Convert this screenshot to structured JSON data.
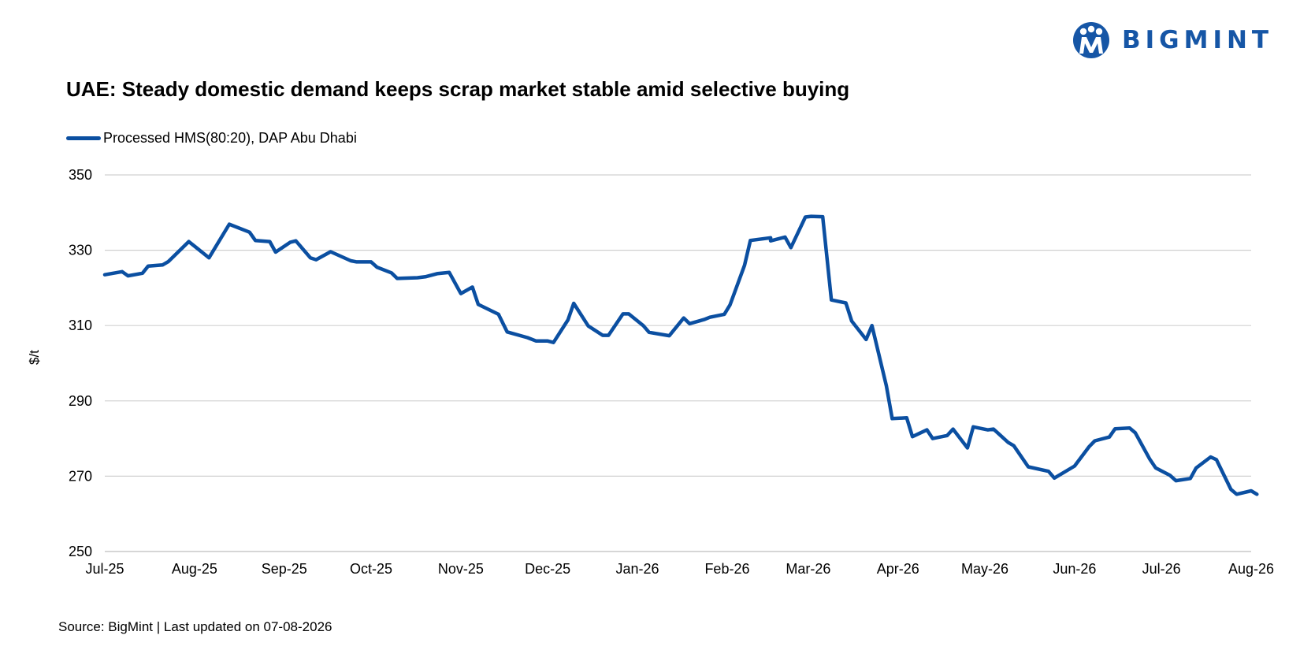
{
  "brand": {
    "name": "BIGMINT",
    "logo_icon": "bigmint-logo-icon",
    "color": "#1656a6"
  },
  "chart_data": {
    "type": "line",
    "title": "UAE: Steady domestic demand keeps scrap market stable amid selective buying",
    "ylabel": "$/t",
    "xlabel": "",
    "ylim": [
      250,
      350
    ],
    "yticks": [
      250,
      270,
      290,
      310,
      330,
      350
    ],
    "xticks": [
      "Jul-25",
      "Aug-25",
      "Sep-25",
      "Oct-25",
      "Nov-25",
      "Dec-25",
      "Jan-26",
      "Feb-26",
      "Mar-26",
      "Apr-26",
      "May-26",
      "Jun-26",
      "Jul-26",
      "Aug-26"
    ],
    "xlim": [
      "2025-07-01",
      "2026-08-01"
    ],
    "grid": true,
    "legend_position": "top-left",
    "series": [
      {
        "name": "Processed HMS(80:20), DAP Abu Dhabi",
        "color": "#0b4fa1",
        "points": [
          [
            "2025-07-01",
            323.5
          ],
          [
            "2025-07-07",
            324.3
          ],
          [
            "2025-07-09",
            323.2
          ],
          [
            "2025-07-14",
            323.9
          ],
          [
            "2025-07-16",
            325.8
          ],
          [
            "2025-07-21",
            326.1
          ],
          [
            "2025-07-23",
            327.0
          ],
          [
            "2025-07-30",
            332.3
          ],
          [
            "2025-08-06",
            328.0
          ],
          [
            "2025-08-13",
            336.9
          ],
          [
            "2025-08-20",
            334.8
          ],
          [
            "2025-08-22",
            332.6
          ],
          [
            "2025-08-27",
            332.3
          ],
          [
            "2025-08-29",
            329.5
          ],
          [
            "2025-09-03",
            332.1
          ],
          [
            "2025-09-05",
            332.5
          ],
          [
            "2025-09-10",
            328.0
          ],
          [
            "2025-09-12",
            327.5
          ],
          [
            "2025-09-17",
            329.6
          ],
          [
            "2025-09-24",
            327.2
          ],
          [
            "2025-09-26",
            326.9
          ],
          [
            "2025-10-01",
            326.9
          ],
          [
            "2025-10-03",
            325.5
          ],
          [
            "2025-10-08",
            324.0
          ],
          [
            "2025-10-10",
            322.5
          ],
          [
            "2025-10-17",
            322.7
          ],
          [
            "2025-10-20",
            323.0
          ],
          [
            "2025-10-24",
            323.8
          ],
          [
            "2025-10-28",
            324.1
          ],
          [
            "2025-11-01",
            318.5
          ],
          [
            "2025-11-05",
            320.2
          ],
          [
            "2025-11-07",
            315.6
          ],
          [
            "2025-11-14",
            313.0
          ],
          [
            "2025-11-17",
            308.3
          ],
          [
            "2025-11-24",
            306.8
          ],
          [
            "2025-11-27",
            305.9
          ],
          [
            "2025-12-01",
            305.9
          ],
          [
            "2025-12-03",
            305.5
          ],
          [
            "2025-12-08",
            311.5
          ],
          [
            "2025-12-10",
            315.9
          ],
          [
            "2025-12-15",
            309.9
          ],
          [
            "2025-12-20",
            307.4
          ],
          [
            "2025-12-22",
            307.4
          ],
          [
            "2025-12-27",
            313.1
          ],
          [
            "2025-12-29",
            313.1
          ],
          [
            "2026-01-03",
            310.0
          ],
          [
            "2026-01-05",
            308.2
          ],
          [
            "2026-01-12",
            307.3
          ],
          [
            "2026-01-17",
            312.0
          ],
          [
            "2026-01-19",
            310.5
          ],
          [
            "2026-01-24",
            311.6
          ],
          [
            "2026-01-26",
            312.2
          ],
          [
            "2026-01-31",
            313.0
          ],
          [
            "2026-02-02",
            315.5
          ],
          [
            "2026-02-07",
            326.0
          ],
          [
            "2026-02-09",
            332.6
          ],
          [
            "2026-02-16",
            333.3
          ],
          [
            "2026-02-16",
            332.5
          ],
          [
            "2026-02-21",
            333.5
          ],
          [
            "2026-02-23",
            330.7
          ],
          [
            "2026-02-28",
            338.8
          ],
          [
            "2026-03-02",
            339.0
          ],
          [
            "2026-03-06",
            338.9
          ],
          [
            "2026-03-09",
            316.8
          ],
          [
            "2026-03-14",
            316.0
          ],
          [
            "2026-03-16",
            311.2
          ],
          [
            "2026-03-21",
            306.3
          ],
          [
            "2026-03-23",
            310.0
          ],
          [
            "2026-03-28",
            294.0
          ],
          [
            "2026-03-30",
            285.3
          ],
          [
            "2026-04-04",
            285.5
          ],
          [
            "2026-04-06",
            280.5
          ],
          [
            "2026-04-11",
            282.3
          ],
          [
            "2026-04-13",
            280.0
          ],
          [
            "2026-04-18",
            280.8
          ],
          [
            "2026-04-20",
            282.5
          ],
          [
            "2026-04-25",
            277.5
          ],
          [
            "2026-04-27",
            283.1
          ],
          [
            "2026-05-02",
            282.3
          ],
          [
            "2026-05-04",
            282.5
          ],
          [
            "2026-05-09",
            279.0
          ],
          [
            "2026-05-11",
            278.1
          ],
          [
            "2026-05-16",
            272.5
          ],
          [
            "2026-05-23",
            271.3
          ],
          [
            "2026-05-25",
            269.5
          ],
          [
            "2026-06-01",
            272.7
          ],
          [
            "2026-06-06",
            277.8
          ],
          [
            "2026-06-08",
            279.4
          ],
          [
            "2026-06-13",
            280.4
          ],
          [
            "2026-06-15",
            282.6
          ],
          [
            "2026-06-20",
            282.8
          ],
          [
            "2026-06-22",
            281.5
          ],
          [
            "2026-06-27",
            274.5
          ],
          [
            "2026-06-29",
            272.2
          ],
          [
            "2026-07-04",
            270.2
          ],
          [
            "2026-07-06",
            268.8
          ],
          [
            "2026-07-11",
            269.4
          ],
          [
            "2026-07-13",
            272.2
          ],
          [
            "2026-07-18",
            275.1
          ],
          [
            "2026-07-20",
            274.4
          ],
          [
            "2026-07-25",
            266.5
          ],
          [
            "2026-07-27",
            265.2
          ],
          [
            "2026-08-01",
            266.1
          ],
          [
            "2026-08-03",
            265.2
          ]
        ]
      }
    ]
  },
  "footer": {
    "source_text": "Source: BigMint | Last updated on 07-08-2026"
  }
}
